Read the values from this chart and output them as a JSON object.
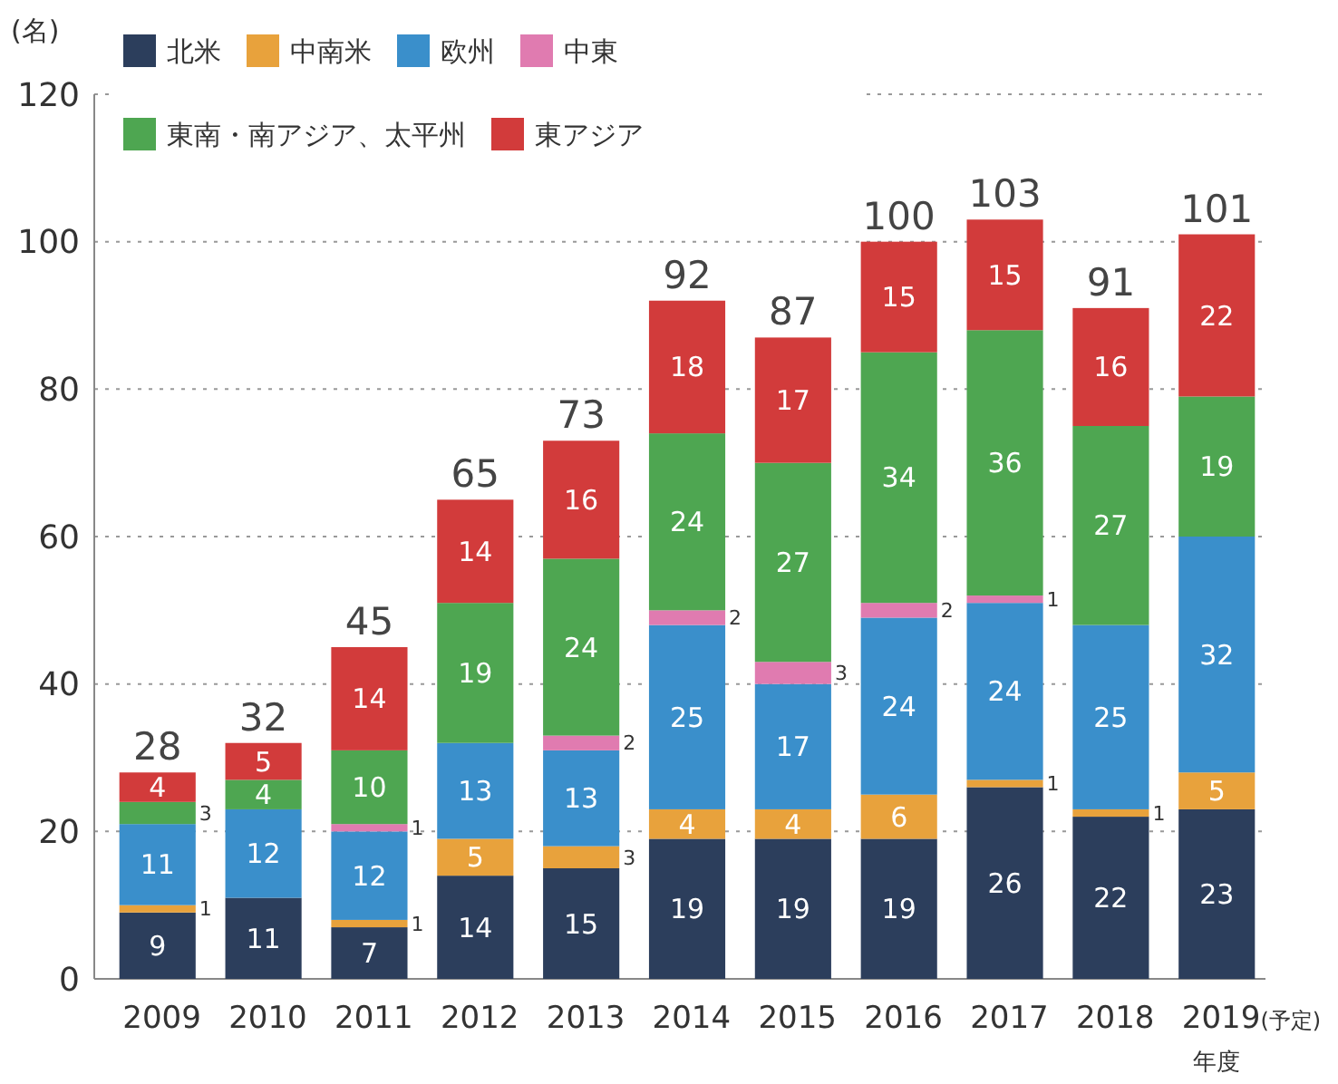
{
  "chart_data": {
    "type": "bar",
    "stacked": true,
    "ylabel": "(名)",
    "xlabel": "年度",
    "categories": [
      "2009",
      "2010",
      "2011",
      "2012",
      "2013",
      "2014",
      "2015",
      "2016",
      "2017",
      "2018",
      "2019(予定)"
    ],
    "series": [
      {
        "name": "北米",
        "color": "#2c3e5c",
        "values": [
          9,
          11,
          7,
          14,
          15,
          19,
          19,
          19,
          26,
          22,
          23
        ]
      },
      {
        "name": "中南米",
        "color": "#e8a23c",
        "values": [
          1,
          null,
          1,
          5,
          3,
          4,
          4,
          6,
          1,
          1,
          5
        ]
      },
      {
        "name": "欧州",
        "color": "#3a8fcb",
        "values": [
          11,
          12,
          12,
          13,
          13,
          25,
          17,
          24,
          24,
          25,
          32
        ]
      },
      {
        "name": "中東",
        "color": "#e07bb0",
        "values": [
          null,
          null,
          1,
          null,
          2,
          2,
          3,
          2,
          1,
          null,
          null
        ]
      },
      {
        "name": "東南・南アジア、太平州",
        "color": "#4ea651",
        "values": [
          3,
          4,
          10,
          19,
          24,
          24,
          27,
          34,
          36,
          27,
          19
        ]
      },
      {
        "name": "東アジア",
        "color": "#d23b3b",
        "values": [
          4,
          5,
          14,
          14,
          16,
          18,
          17,
          15,
          15,
          16,
          22
        ]
      }
    ],
    "totals": [
      "28",
      "32",
      "45",
      "65",
      "73",
      "92",
      "87",
      "100",
      "103",
      "91",
      "101"
    ],
    "data_labels": true,
    "ylim": [
      0,
      120
    ],
    "yticks": [
      0,
      20,
      40,
      60,
      80,
      100,
      120
    ],
    "grid": "y",
    "legend": "top left"
  }
}
